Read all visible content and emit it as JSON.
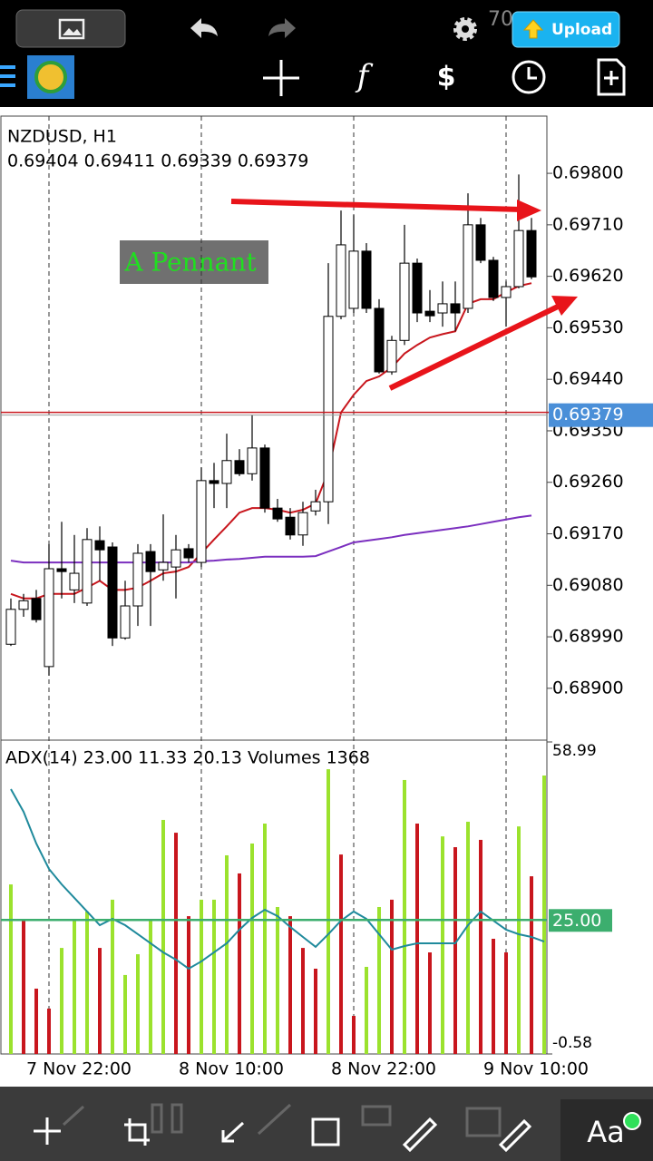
{
  "status_bar": {
    "battery": "70",
    "upload": "Upload"
  },
  "bottom_toolbar": {
    "text_button": "Aa"
  },
  "chart_data": [
    {
      "type": "candlestick",
      "title": "NZDUSD, H1",
      "subtitle": "0.69404 0.69411 0.69339 0.69379",
      "annotation": "A Pennant",
      "categories": [
        null,
        null,
        null,
        "7 Nov 22:00",
        null,
        null,
        null,
        null,
        null,
        null,
        null,
        null,
        null,
        null,
        null,
        "8 Nov 10:00",
        null,
        null,
        null,
        null,
        null,
        null,
        null,
        null,
        null,
        null,
        null,
        "8 Nov 22:00",
        null,
        null,
        null,
        null,
        null,
        null,
        null,
        null,
        null,
        null,
        null,
        "9 Nov 10:00",
        null,
        null,
        null
      ],
      "open": [
        0.68977,
        0.69038,
        0.69057,
        0.68938,
        0.69109,
        0.69072,
        0.69049,
        0.69158,
        0.69147,
        0.68988,
        0.69044,
        0.69139,
        0.69107,
        0.69112,
        0.69144,
        0.6912,
        0.69263,
        0.69258,
        0.69298,
        0.69275,
        0.6932,
        0.69215,
        0.69199,
        0.69168,
        0.6921,
        0.69226,
        0.6955,
        0.69564,
        0.69664,
        0.69564,
        0.69453,
        0.69508,
        0.69643,
        0.69559,
        0.69556,
        0.69572,
        0.69564,
        0.6971,
        0.69648,
        0.69583,
        0.69602,
        0.697,
        null
      ],
      "high": [
        0.69057,
        0.69065,
        0.69072,
        0.69152,
        0.69191,
        0.69168,
        0.6918,
        0.69183,
        0.69155,
        0.69088,
        0.69152,
        0.69152,
        0.69204,
        0.69168,
        0.69152,
        0.69286,
        0.69294,
        0.69345,
        0.69318,
        0.69378,
        0.69326,
        0.69231,
        0.69215,
        0.69226,
        0.69247,
        0.69643,
        0.69735,
        0.69727,
        0.69678,
        0.6958,
        0.69516,
        0.6971,
        0.69651,
        0.69596,
        0.69611,
        0.69611,
        0.69765,
        0.69722,
        0.69654,
        0.69611,
        0.69798,
        0.69722,
        null
      ],
      "low": [
        0.68974,
        0.69025,
        0.69015,
        0.68922,
        0.69057,
        0.69049,
        0.69044,
        0.69088,
        0.68974,
        0.68985,
        0.69009,
        0.69009,
        0.69088,
        0.69057,
        0.6912,
        0.69112,
        0.69215,
        0.69215,
        0.69271,
        0.69263,
        0.69207,
        0.69191,
        0.6916,
        0.69149,
        0.69202,
        0.69187,
        0.69545,
        0.69556,
        0.69556,
        0.6945,
        0.69448,
        0.695,
        0.6954,
        0.6954,
        0.69532,
        0.69524,
        0.69556,
        0.69643,
        0.69577,
        0.69532,
        0.69599,
        0.69615,
        null
      ],
      "close": [
        0.69038,
        0.69053,
        0.6902,
        0.69109,
        0.69104,
        0.69101,
        0.6916,
        0.69142,
        0.68988,
        0.69044,
        0.69136,
        0.69104,
        0.6912,
        0.69142,
        0.69128,
        0.69263,
        0.69258,
        0.69298,
        0.69275,
        0.6932,
        0.69215,
        0.69196,
        0.69168,
        0.69207,
        0.69226,
        0.6955,
        0.69675,
        0.69664,
        0.69564,
        0.69453,
        0.69508,
        0.69643,
        0.69556,
        0.69551,
        0.69572,
        0.69556,
        0.6971,
        0.69648,
        0.69583,
        0.69602,
        0.697,
        0.69619,
        null
      ],
      "up_color": "#ffffff",
      "down_color": "#000000",
      "series": [
        {
          "color": "#c8161d",
          "values": [
            0.69065,
            0.69057,
            0.69057,
            0.69065,
            0.69065,
            0.69065,
            0.69076,
            0.69088,
            0.69072,
            0.69072,
            0.69076,
            0.69088,
            0.69101,
            0.69104,
            0.69112,
            0.69136,
            0.6916,
            0.69183,
            0.69207,
            0.69215,
            0.69215,
            0.69212,
            0.69207,
            0.69212,
            0.69223,
            0.69279,
            0.69382,
            0.69413,
            0.69437,
            0.69445,
            0.69461,
            0.69485,
            0.695,
            0.69513,
            0.69519,
            0.69524,
            0.69572,
            0.6958,
            0.6958,
            0.69592,
            0.69603,
            0.69608,
            null
          ]
        },
        {
          "color": "#7b2fbf",
          "values": [
            0.69123,
            0.6912,
            0.6912,
            0.6912,
            0.6912,
            0.6912,
            0.6912,
            0.6912,
            0.6912,
            0.6912,
            0.6912,
            0.6912,
            0.6912,
            0.6912,
            0.6912,
            0.69122,
            0.69123,
            0.69125,
            0.69126,
            0.69128,
            0.6913,
            0.6913,
            0.6913,
            0.6913,
            0.69131,
            0.69139,
            0.69147,
            0.69155,
            0.69158,
            0.69161,
            0.69164,
            0.69168,
            0.69171,
            0.69174,
            0.69177,
            0.6918,
            0.69183,
            0.69187,
            0.69191,
            0.69195,
            0.69199,
            0.69202,
            null
          ]
        }
      ],
      "ylim": [
        0.68811,
        0.699
      ],
      "yticks": [
        {
          "value": 0.698,
          "label": "0.69800"
        },
        {
          "value": 0.6971,
          "label": "0.69710"
        },
        {
          "value": 0.6962,
          "label": "0.69620"
        },
        {
          "value": 0.6953,
          "label": "0.69530"
        },
        {
          "value": 0.6944,
          "label": "0.69440"
        },
        {
          "value": 0.6935,
          "label": "0.69350"
        },
        {
          "value": 0.6926,
          "label": "0.69260"
        },
        {
          "value": 0.6917,
          "label": "0.69170"
        },
        {
          "value": 0.6908,
          "label": "0.69080"
        },
        {
          "value": 0.6899,
          "label": "0.68990"
        },
        {
          "value": 0.689,
          "label": "0.68900"
        }
      ],
      "bid": 0.69379,
      "bid_color": "#4a8fd8"
    },
    {
      "type": "bar",
      "title": "ADX(14) 23.00 11.33 20.13 Volumes 1368",
      "series": [
        {
          "axis": "y2",
          "values": [
            833,
            655,
            321,
            223,
            521,
            655,
            700,
            521,
            758,
            388,
            490,
            655,
            1150,
            1087,
            677,
            758,
            758,
            976,
            887,
            1034,
            1132,
            722,
            677,
            521,
            419,
            1399,
            980,
            187,
            428,
            722,
            758,
            1346,
            1132,
            499,
            1069,
            1016,
            1141,
            1052,
            566,
            499,
            1118,
            873,
            1368
          ],
          "colors": [
            "#9be22d",
            "#c8161d",
            "#c8161d",
            "#c8161d",
            "#9be22d",
            "#9be22d",
            "#9be22d",
            "#c8161d",
            "#9be22d",
            "#9be22d",
            "#9be22d",
            "#9be22d",
            "#9be22d",
            "#c8161d",
            "#c8161d",
            "#9be22d",
            "#9be22d",
            "#9be22d",
            "#c8161d",
            "#9be22d",
            "#9be22d",
            "#9be22d",
            "#c8161d",
            "#c8161d",
            "#c8161d",
            "#9be22d",
            "#c8161d",
            "#c8161d",
            "#9be22d",
            "#9be22d",
            "#c8161d",
            "#9be22d",
            "#c8161d",
            "#c8161d",
            "#9be22d",
            "#c8161d",
            "#9be22d",
            "#c8161d",
            "#c8161d",
            "#c8161d",
            "#9be22d",
            "#c8161d",
            "#9be22d"
          ]
        },
        {
          "type": "line",
          "color": "#1f8a9c",
          "values": [
            49.99,
            45.66,
            39.6,
            34.75,
            31.8,
            29.21,
            26.61,
            24.01,
            25.22,
            24.01,
            22.28,
            20.55,
            18.82,
            17.43,
            15.7,
            17.09,
            18.82,
            20.55,
            23.15,
            25.4,
            26.96,
            25.74,
            23.67,
            21.76,
            19.86,
            22.28,
            24.88,
            26.61,
            25.22,
            22.28,
            19.34,
            20.03,
            20.55,
            20.55,
            20.55,
            20.55,
            24.01,
            26.61,
            24.88,
            23.15,
            22.28,
            21.76,
            20.89
          ]
        }
      ],
      "ylim": [
        -0.58,
        58.99
      ],
      "yticks": [
        -0.58,
        {
          "value": 25,
          "label": "25.00"
        },
        58.99
      ],
      "y2lim": [
        0,
        1533
      ],
      "level_color": "#3cae6e"
    }
  ]
}
